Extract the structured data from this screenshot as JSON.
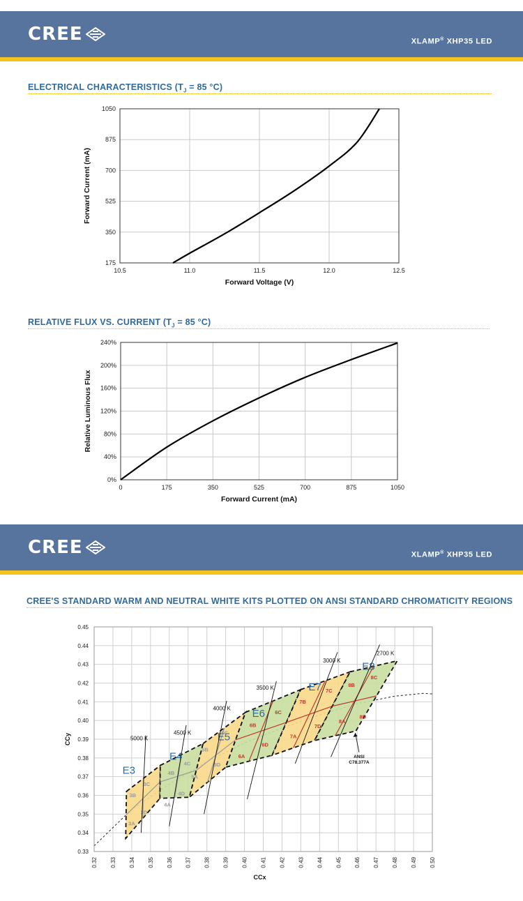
{
  "page": {
    "brand": "CREE",
    "product": "XLAMP",
    "product_reg": "®",
    "product_model": "XHP35 LED",
    "section1_title": "ELECTRICAL CHARACTERISTICS (T",
    "section1_sub": "J",
    "section1_tail": " = 85 °C)",
    "section2_title": "RELATIVE FLUX VS. CURRENT (T",
    "section2_sub": "J",
    "section2_tail": " = 85 °C)",
    "section3_title": "CREE'S STANDARD WARM AND NEUTRAL WHITE KITS PLOTTED ON ANSI STANDARD CHROMATICITY REGIONS"
  },
  "colors": {
    "header": "#57749f",
    "stripe": "#f4c21a",
    "title": "#2f6ba0",
    "warm_fill": "#f9d98a",
    "green_fill": "#c8dea0",
    "bin_border": "#c0392b",
    "bin_label": "#c0392b",
    "e_label": "#2f6ba0"
  },
  "chart_data": [
    {
      "type": "line",
      "xlabel": "Forward Voltage (V)",
      "ylabel": "Forward Current (mA)",
      "xlim": [
        10.5,
        12.5
      ],
      "ylim": [
        175,
        1050
      ],
      "xticks": [
        "10.5",
        "11.0",
        "11.5",
        "12.0",
        "12.5"
      ],
      "yticks": [
        "175",
        "350",
        "525",
        "700",
        "875",
        "1050"
      ],
      "grid": true,
      "series": [
        {
          "x": [
            10.88,
            11.0,
            11.25,
            11.5,
            11.75,
            12.0,
            12.2,
            12.36
          ],
          "y": [
            175,
            230,
            340,
            460,
            585,
            725,
            860,
            1050
          ]
        }
      ]
    },
    {
      "type": "line",
      "xlabel": "Forward Current (mA)",
      "ylabel": "Relative Luminous Flux",
      "xlim": [
        0,
        1050
      ],
      "ylim": [
        0,
        240
      ],
      "xticks": [
        "0",
        "175",
        "350",
        "525",
        "700",
        "875",
        "1050"
      ],
      "yticks": [
        "0%",
        "40%",
        "80%",
        "120%",
        "160%",
        "200%",
        "240%"
      ],
      "grid": true,
      "series": [
        {
          "x": [
            0,
            175,
            350,
            525,
            700,
            875,
            1050
          ],
          "y": [
            0,
            57,
            103,
            143,
            179,
            210,
            239
          ]
        }
      ]
    },
    {
      "type": "scatter",
      "xlabel": "CCx",
      "ylabel": "CCy",
      "xlim": [
        0.32,
        0.5
      ],
      "ylim": [
        0.33,
        0.45
      ],
      "xticks": [
        "0.32",
        "0.33",
        "0.34",
        "0.35",
        "0.36",
        "0.37",
        "0.38",
        "0.39",
        "0.40",
        "0.41",
        "0.42",
        "0.43",
        "0.44",
        "0.45",
        "0.46",
        "0.47",
        "0.48",
        "0.49",
        "0.50"
      ],
      "yticks": [
        "0.33",
        "0.34",
        "0.35",
        "0.36",
        "0.37",
        "0.38",
        "0.39",
        "0.40",
        "0.41",
        "0.42",
        "0.43",
        "0.44",
        "0.45"
      ],
      "grid": true,
      "kits": [
        {
          "name": "E3",
          "at": [
            0.3385,
            0.3715
          ],
          "polygon": [
            [
              0.3372,
              0.3621
            ],
            [
              0.3552,
              0.376
            ],
            [
              0.355,
              0.3584
            ],
            [
              0.3368,
              0.337
            ]
          ]
        },
        {
          "name": "E4",
          "at": [
            0.3635,
            0.379
          ],
          "polygon": [
            [
              0.3552,
              0.376
            ],
            [
              0.378,
              0.3877
            ],
            [
              0.3707,
              0.359
            ],
            [
              0.355,
              0.3584
            ]
          ]
        },
        {
          "name": "E5",
          "at": [
            0.389,
            0.3895
          ],
          "polygon": [
            [
              0.378,
              0.3877
            ],
            [
              0.4006,
              0.4044
            ],
            [
              0.39,
              0.375
            ],
            [
              0.3707,
              0.359
            ]
          ]
        },
        {
          "name": "E6",
          "at": [
            0.4075,
            0.402
          ],
          "polygon": [
            [
              0.4006,
              0.4044
            ],
            [
              0.4299,
              0.4165
            ],
            [
              0.4147,
              0.3814
            ],
            [
              0.39,
              0.375
            ]
          ]
        },
        {
          "name": "E7",
          "at": [
            0.4375,
            0.416
          ],
          "polygon": [
            [
              0.4299,
              0.4165
            ],
            [
              0.4562,
              0.426
            ],
            [
              0.4373,
              0.3893
            ],
            [
              0.4147,
              0.3814
            ]
          ]
        },
        {
          "name": "E8",
          "at": [
            0.466,
            0.427
          ],
          "polygon": [
            [
              0.4562,
              0.426
            ],
            [
              0.4813,
              0.4319
            ],
            [
              0.4593,
              0.3944
            ],
            [
              0.4373,
              0.3893
            ]
          ]
        }
      ],
      "bins": [
        {
          "label": "3A",
          "at": [
            0.34,
            0.344
          ],
          "warm": true
        },
        {
          "label": "3B",
          "at": [
            0.3405,
            0.359
          ],
          "warm": true
        },
        {
          "label": "3C",
          "at": [
            0.348,
            0.365
          ],
          "warm": true
        },
        {
          "label": "3D",
          "at": [
            0.3465,
            0.35
          ],
          "warm": true
        },
        {
          "label": "4A",
          "at": [
            0.359,
            0.354
          ],
          "warm": false
        },
        {
          "label": "4B",
          "at": [
            0.361,
            0.371
          ],
          "warm": false
        },
        {
          "label": "4C",
          "at": [
            0.3695,
            0.376
          ],
          "warm": false
        },
        {
          "label": "4D",
          "at": [
            0.3665,
            0.36
          ],
          "warm": false
        },
        {
          "label": "5A",
          "at": [
            0.3735,
            0.369
          ],
          "warm": true
        },
        {
          "label": "5B",
          "at": [
            0.379,
            0.3835
          ],
          "warm": true
        },
        {
          "label": "5C",
          "at": [
            0.3895,
            0.3925
          ],
          "warm": true
        },
        {
          "label": "5D",
          "at": [
            0.3855,
            0.3755
          ],
          "warm": true
        },
        {
          "label": "6A",
          "at": [
            0.3985,
            0.38
          ],
          "warm": false
        },
        {
          "label": "6B",
          "at": [
            0.4045,
            0.3965
          ],
          "warm": false
        },
        {
          "label": "6C",
          "at": [
            0.418,
            0.4035
          ],
          "warm": false
        },
        {
          "label": "6D",
          "at": [
            0.411,
            0.386
          ],
          "warm": false
        },
        {
          "label": "7A",
          "at": [
            0.426,
            0.3905
          ],
          "warm": true
        },
        {
          "label": "7B",
          "at": [
            0.431,
            0.409
          ],
          "warm": true
        },
        {
          "label": "7C",
          "at": [
            0.445,
            0.415
          ],
          "warm": true
        },
        {
          "label": "7D",
          "at": [
            0.439,
            0.396
          ],
          "warm": true
        },
        {
          "label": "8A",
          "at": [
            0.452,
            0.3985
          ],
          "warm": false
        },
        {
          "label": "8B",
          "at": [
            0.457,
            0.418
          ],
          "warm": false
        },
        {
          "label": "8C",
          "at": [
            0.469,
            0.422
          ],
          "warm": false
        },
        {
          "label": "8D",
          "at": [
            0.463,
            0.401
          ],
          "warm": false
        }
      ],
      "cct_lines": [
        {
          "label": "5000 K",
          "label_at": [
            0.344,
            0.3895
          ],
          "from": [
            0.345,
            0.34
          ],
          "to": [
            0.3475,
            0.392
          ]
        },
        {
          "label": "4500 K",
          "label_at": [
            0.367,
            0.3925
          ],
          "from": [
            0.36,
            0.3435
          ],
          "to": [
            0.369,
            0.3975
          ]
        },
        {
          "label": "4000 K",
          "label_at": [
            0.388,
            0.4055
          ],
          "from": [
            0.3785,
            0.35
          ],
          "to": [
            0.3905,
            0.4105
          ]
        },
        {
          "label": "3500 K",
          "label_at": [
            0.411,
            0.4165
          ],
          "from": [
            0.4015,
            0.358
          ],
          "to": [
            0.417,
            0.421
          ]
        },
        {
          "label": "3000 K",
          "label_at": [
            0.4465,
            0.431
          ],
          "from": [
            0.427,
            0.377
          ],
          "to": [
            0.4495,
            0.4365
          ]
        },
        {
          "label": "2700 K",
          "label_at": [
            0.475,
            0.435
          ],
          "from": [
            0.446,
            0.3805
          ],
          "to": [
            0.472,
            0.4405
          ]
        }
      ],
      "planckian": [
        [
          0.32,
          0.333
        ],
        [
          0.34,
          0.3525
        ],
        [
          0.36,
          0.366
        ],
        [
          0.38,
          0.378
        ],
        [
          0.4,
          0.388
        ],
        [
          0.42,
          0.396
        ],
        [
          0.44,
          0.403
        ],
        [
          0.46,
          0.409
        ],
        [
          0.48,
          0.413
        ],
        [
          0.495,
          0.4145
        ],
        [
          0.5,
          0.4142
        ]
      ],
      "annotation": {
        "line1": "ANSI",
        "line2": "C78.377A",
        "at": [
          0.461,
          0.38
        ],
        "arrow_to": [
          0.459,
          0.3945
        ]
      }
    }
  ]
}
